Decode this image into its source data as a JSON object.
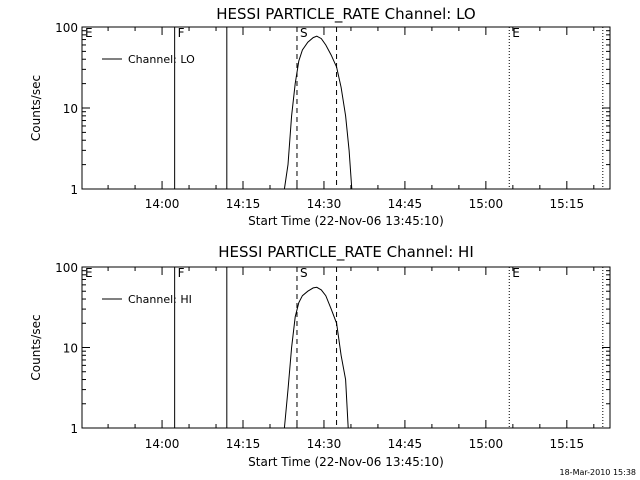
{
  "footer_timestamp": "18-Mar-2010 15:38",
  "chart_data": [
    {
      "type": "line",
      "title": "HESSI PARTICLE_RATE Channel: LO",
      "xlabel": "Start Time (22-Nov-06 13:45:10)",
      "ylabel": "Counts/sec",
      "xlim": [
        "13:45:10",
        "15:23:00"
      ],
      "ylim": [
        1,
        100
      ],
      "yscale": "log",
      "x_ticks": [
        "14:00",
        "14:15",
        "14:30",
        "14:45",
        "15:00",
        "15:15"
      ],
      "y_ticks": [
        "1",
        "10",
        "100"
      ],
      "legend": {
        "position": "top-left",
        "entries": [
          "Channel: LO"
        ]
      },
      "markers": [
        {
          "label": "E",
          "time": "13:45:10",
          "style": "none"
        },
        {
          "label": "F",
          "time": "14:02:20",
          "style": "solid"
        },
        {
          "label": "",
          "time": "14:12:00",
          "style": "solid"
        },
        {
          "label": "S",
          "time": "14:25:00",
          "style": "dashed"
        },
        {
          "label": "",
          "time": "14:32:20",
          "style": "dashed"
        },
        {
          "label": "E",
          "time": "15:04:20",
          "style": "dotted"
        },
        {
          "label": "",
          "time": "15:21:40",
          "style": "dotted"
        }
      ],
      "series": [
        {
          "name": "Channel: LO",
          "x": [
            "14:22:40",
            "14:23:20",
            "14:24:00",
            "14:24:40",
            "14:25:20",
            "14:26:00",
            "14:27:00",
            "14:28:00",
            "14:28:40",
            "14:29:30",
            "14:30:20",
            "14:31:20",
            "14:32:20",
            "14:33:10",
            "14:34:00",
            "14:34:40",
            "14:35:10"
          ],
          "y": [
            1,
            2,
            8,
            20,
            38,
            52,
            65,
            74,
            77,
            72,
            60,
            45,
            32,
            18,
            8,
            3,
            1
          ]
        }
      ]
    },
    {
      "type": "line",
      "title": "HESSI PARTICLE_RATE Channel: HI",
      "xlabel": "Start Time (22-Nov-06 13:45:10)",
      "ylabel": "Counts/sec",
      "xlim": [
        "13:45:10",
        "15:23:00"
      ],
      "ylim": [
        1,
        100
      ],
      "yscale": "log",
      "x_ticks": [
        "14:00",
        "14:15",
        "14:30",
        "14:45",
        "15:00",
        "15:15"
      ],
      "y_ticks": [
        "1",
        "10",
        "100"
      ],
      "legend": {
        "position": "top-left",
        "entries": [
          "Channel: HI"
        ]
      },
      "markers": [
        {
          "label": "E",
          "time": "13:45:10",
          "style": "none"
        },
        {
          "label": "F",
          "time": "14:02:20",
          "style": "solid"
        },
        {
          "label": "",
          "time": "14:12:00",
          "style": "solid"
        },
        {
          "label": "S",
          "time": "14:25:00",
          "style": "dashed"
        },
        {
          "label": "",
          "time": "14:32:20",
          "style": "dashed"
        },
        {
          "label": "E",
          "time": "15:04:20",
          "style": "dotted"
        },
        {
          "label": "",
          "time": "15:21:40",
          "style": "dotted"
        }
      ],
      "series": [
        {
          "name": "Channel: HI",
          "x": [
            "14:22:40",
            "14:23:20",
            "14:24:00",
            "14:24:40",
            "14:25:20",
            "14:26:00",
            "14:27:00",
            "14:28:00",
            "14:28:40",
            "14:29:30",
            "14:30:20",
            "14:31:20",
            "14:32:20",
            "14:33:10",
            "14:34:00",
            "14:34:30"
          ],
          "y": [
            1,
            3,
            10,
            24,
            36,
            44,
            50,
            55,
            56,
            52,
            44,
            30,
            20,
            8,
            4,
            1
          ]
        }
      ]
    }
  ]
}
